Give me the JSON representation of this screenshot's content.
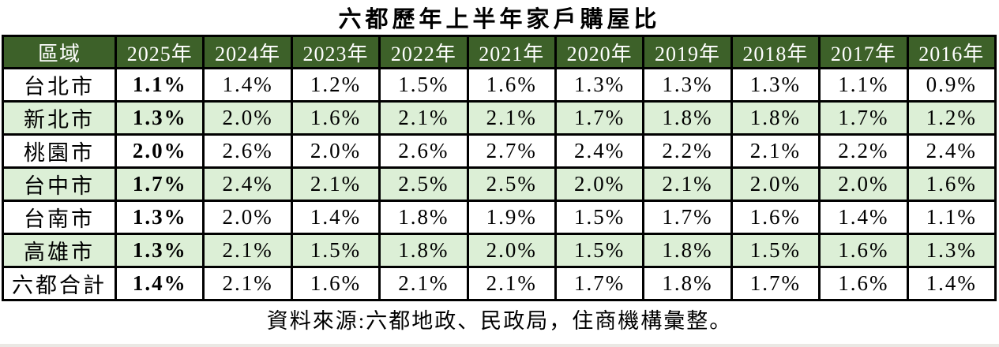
{
  "title": "六都歷年上半年家戶購屋比",
  "source_note": "資料來源:六都地政、民政局，住商機構彙整。",
  "colors": {
    "header_bg": "#3d6129",
    "header_text": "#ffffff",
    "row_bg": "#ffffff",
    "row_alt_bg": "#dcefd6",
    "border": "#000000"
  },
  "table": {
    "region_header": "區域",
    "year_headers": [
      "2025年",
      "2024年",
      "2023年",
      "2022年",
      "2021年",
      "2020年",
      "2019年",
      "2018年",
      "2017年",
      "2016年"
    ],
    "rows": [
      {
        "region": "台北市",
        "values": [
          "1.1%",
          "1.4%",
          "1.2%",
          "1.5%",
          "1.6%",
          "1.3%",
          "1.3%",
          "1.3%",
          "1.1%",
          "0.9%"
        ]
      },
      {
        "region": "新北市",
        "values": [
          "1.3%",
          "2.0%",
          "1.6%",
          "2.1%",
          "2.1%",
          "1.7%",
          "1.8%",
          "1.8%",
          "1.7%",
          "1.2%"
        ]
      },
      {
        "region": "桃園市",
        "values": [
          "2.0%",
          "2.6%",
          "2.0%",
          "2.6%",
          "2.7%",
          "2.4%",
          "2.2%",
          "2.1%",
          "2.2%",
          "2.4%"
        ]
      },
      {
        "region": "台中市",
        "values": [
          "1.7%",
          "2.4%",
          "2.1%",
          "2.5%",
          "2.5%",
          "2.0%",
          "2.1%",
          "2.0%",
          "2.0%",
          "1.6%"
        ]
      },
      {
        "region": "台南市",
        "values": [
          "1.3%",
          "2.0%",
          "1.4%",
          "1.8%",
          "1.9%",
          "1.5%",
          "1.7%",
          "1.6%",
          "1.4%",
          "1.1%"
        ]
      },
      {
        "region": "高雄市",
        "values": [
          "1.3%",
          "2.1%",
          "1.5%",
          "1.8%",
          "2.0%",
          "1.5%",
          "1.8%",
          "1.5%",
          "1.6%",
          "1.3%"
        ]
      },
      {
        "region": "六都合計",
        "values": [
          "1.4%",
          "2.1%",
          "1.6%",
          "2.1%",
          "2.1%",
          "1.7%",
          "1.8%",
          "1.7%",
          "1.6%",
          "1.4%"
        ]
      }
    ]
  },
  "chart_data": {
    "type": "table",
    "title": "六都歷年上半年家戶購屋比",
    "unit": "%",
    "columns": [
      "區域",
      "2025年",
      "2024年",
      "2023年",
      "2022年",
      "2021年",
      "2020年",
      "2019年",
      "2018年",
      "2017年",
      "2016年"
    ],
    "rows": [
      [
        "台北市",
        1.1,
        1.4,
        1.2,
        1.5,
        1.6,
        1.3,
        1.3,
        1.3,
        1.1,
        0.9
      ],
      [
        "新北市",
        1.3,
        2.0,
        1.6,
        2.1,
        2.1,
        1.7,
        1.8,
        1.8,
        1.7,
        1.2
      ],
      [
        "桃園市",
        2.0,
        2.6,
        2.0,
        2.6,
        2.7,
        2.4,
        2.2,
        2.1,
        2.2,
        2.4
      ],
      [
        "台中市",
        1.7,
        2.4,
        2.1,
        2.5,
        2.5,
        2.0,
        2.1,
        2.0,
        2.0,
        1.6
      ],
      [
        "台南市",
        1.3,
        2.0,
        1.4,
        1.8,
        1.9,
        1.5,
        1.7,
        1.6,
        1.4,
        1.1
      ],
      [
        "高雄市",
        1.3,
        2.1,
        1.5,
        1.8,
        2.0,
        1.5,
        1.8,
        1.5,
        1.6,
        1.3
      ],
      [
        "六都合計",
        1.4,
        2.1,
        1.6,
        2.1,
        2.1,
        1.7,
        1.8,
        1.7,
        1.6,
        1.4
      ]
    ],
    "annotations": [
      "資料來源:六都地政、民政局，住商機構彙整。"
    ],
    "layout_hints": {
      "highlight_column": "2025年",
      "alternating_row_fill": true,
      "header_fill": "#3d6129"
    }
  }
}
